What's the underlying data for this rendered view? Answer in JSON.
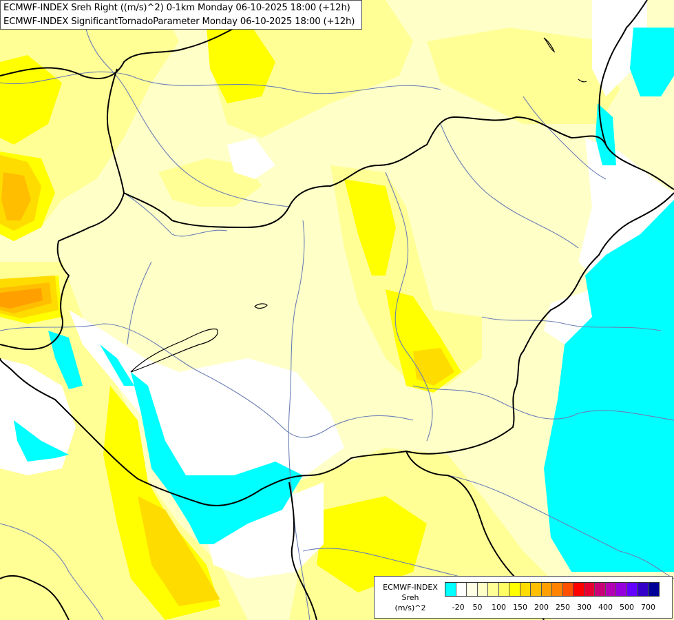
{
  "title": {
    "line1": "ECMWF-INDEX Sreh Right ((m/s)^2) 0-1km Monday 06-10-2025 18:00 (+12h)",
    "line2": "ECMWF-INDEX SignificantTornadoParameter Monday 06-10-2025 18:00 (+12h)"
  },
  "legend": {
    "line1": "ECMWF-INDEX",
    "line2": "Sreh",
    "line3": "(m/s)^2",
    "colors": [
      "#00ffff",
      "#ffffff",
      "#ffffe6",
      "#ffffc8",
      "#ffff96",
      "#ffff64",
      "#ffff00",
      "#ffdc00",
      "#ffbe00",
      "#ffa000",
      "#ff8200",
      "#ff5000",
      "#ff0000",
      "#e60032",
      "#c80078",
      "#b400b4",
      "#9600dc",
      "#6400ff",
      "#3200c8",
      "#000096"
    ],
    "ticks": [
      "-20",
      "50",
      "100",
      "150",
      "200",
      "250",
      "300",
      "400",
      "500",
      "700"
    ]
  },
  "map_colors": {
    "land_base": "#ffffc8",
    "light_yellow": "#ffff96",
    "yellow": "#ffff00",
    "gold": "#ffdc00",
    "orange": "#ffbe00",
    "dark_orange": "#ffa000",
    "cyan": "#00ffff",
    "white": "#ffffff",
    "border": "#000000",
    "river": "#6b7fb5"
  }
}
